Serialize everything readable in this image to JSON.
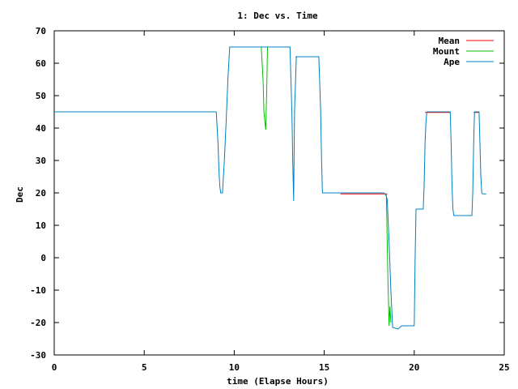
{
  "chart_data": {
    "type": "line",
    "title": "1: Dec vs. Time",
    "xlabel": "time (Elapse Hours)",
    "ylabel": "Dec",
    "xlim": [
      0,
      25
    ],
    "ylim": [
      -30,
      70
    ],
    "xticks": [
      0,
      5,
      10,
      15,
      20,
      25
    ],
    "yticks": [
      -30,
      -20,
      -10,
      0,
      10,
      20,
      30,
      40,
      50,
      60,
      70
    ],
    "grid": false,
    "legend_position": "top-right",
    "series": [
      {
        "name": "Mean",
        "color": "#ff0000",
        "x": [
          13.4,
          14.7,
          null,
          15.9,
          18.5,
          null,
          20.6,
          22.0,
          null,
          23.3,
          23.6
        ],
        "y": [
          62,
          62,
          null,
          19.7,
          19.7,
          null,
          44.8,
          44.8,
          null,
          44.8,
          44.8
        ]
      },
      {
        "name": "Mount",
        "color": "#00c000",
        "x": [
          11.5,
          11.6,
          11.65,
          11.7,
          11.75,
          11.8,
          11.85,
          null,
          18.45,
          18.5,
          18.55,
          18.6,
          18.65,
          18.7
        ],
        "y": [
          65,
          55,
          45,
          42,
          39.5,
          50,
          65,
          null,
          19.7,
          5,
          -10,
          -21,
          -15,
          -20
        ]
      },
      {
        "name": "Ape",
        "color": "#0080c0",
        "x": [
          0,
          8.9,
          9.0,
          9.1,
          9.15,
          9.2,
          9.25,
          9.35,
          9.45,
          9.55,
          9.65,
          9.75,
          11.8,
          13.1,
          13.2,
          13.25,
          13.3,
          13.35,
          13.45,
          14.7,
          14.8,
          14.85,
          14.9,
          18.3,
          18.4,
          18.45,
          18.5,
          18.6,
          18.7,
          18.8,
          19.1,
          19.3,
          20.0,
          20.05,
          20.1,
          20.5,
          20.55,
          20.6,
          20.65,
          20.7,
          22.0,
          22.05,
          22.1,
          22.15,
          22.2,
          23.2,
          23.25,
          23.3,
          23.35,
          23.4,
          23.6,
          23.65,
          23.7,
          23.75,
          23.8,
          24.0
        ],
        "y": [
          45,
          45,
          45,
          35,
          27,
          22,
          20,
          20,
          30,
          42,
          55,
          65,
          65,
          65,
          45,
          30,
          17.5,
          45,
          62,
          62,
          45,
          30,
          20,
          20,
          19.5,
          19,
          18,
          5,
          -10,
          -21.5,
          -22,
          -21,
          -21,
          0,
          15,
          15,
          22,
          35,
          42,
          45,
          45,
          35,
          22,
          15,
          13,
          13,
          20,
          35,
          45,
          45,
          45,
          35,
          25,
          20,
          19.7,
          19.7
        ]
      }
    ]
  }
}
